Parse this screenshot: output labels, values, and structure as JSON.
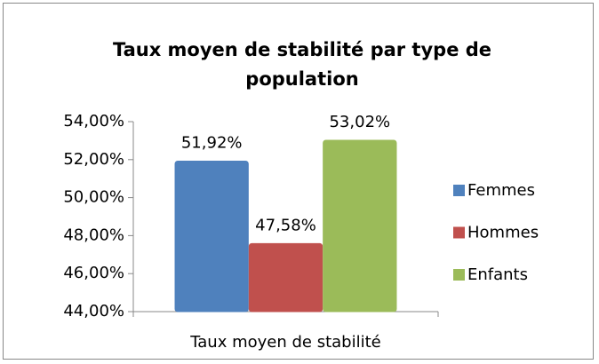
{
  "chart_data": {
    "type": "bar",
    "title": "Taux moyen de stabilité par type de population",
    "categories": [
      "Taux moyen de stabilité"
    ],
    "series": [
      {
        "name": "Femmes",
        "color": "#4f81bd",
        "values": [
          51.92
        ],
        "value_labels": [
          "51,92%"
        ]
      },
      {
        "name": "Hommes",
        "color": "#c0504d",
        "values": [
          47.58
        ],
        "value_labels": [
          "47,58%"
        ]
      },
      {
        "name": "Enfants",
        "color": "#9bbb59",
        "values": [
          53.02
        ],
        "value_labels": [
          "53,02%"
        ]
      }
    ],
    "ylim": [
      44,
      54
    ],
    "yticks": [
      {
        "value": 44,
        "label": "44,00%"
      },
      {
        "value": 46,
        "label": "46,00%"
      },
      {
        "value": 48,
        "label": "48,00%"
      },
      {
        "value": 50,
        "label": "50,00%"
      },
      {
        "value": 52,
        "label": "52,00%"
      },
      {
        "value": 54,
        "label": "54,00%"
      }
    ],
    "grid": false,
    "legend": "right"
  }
}
